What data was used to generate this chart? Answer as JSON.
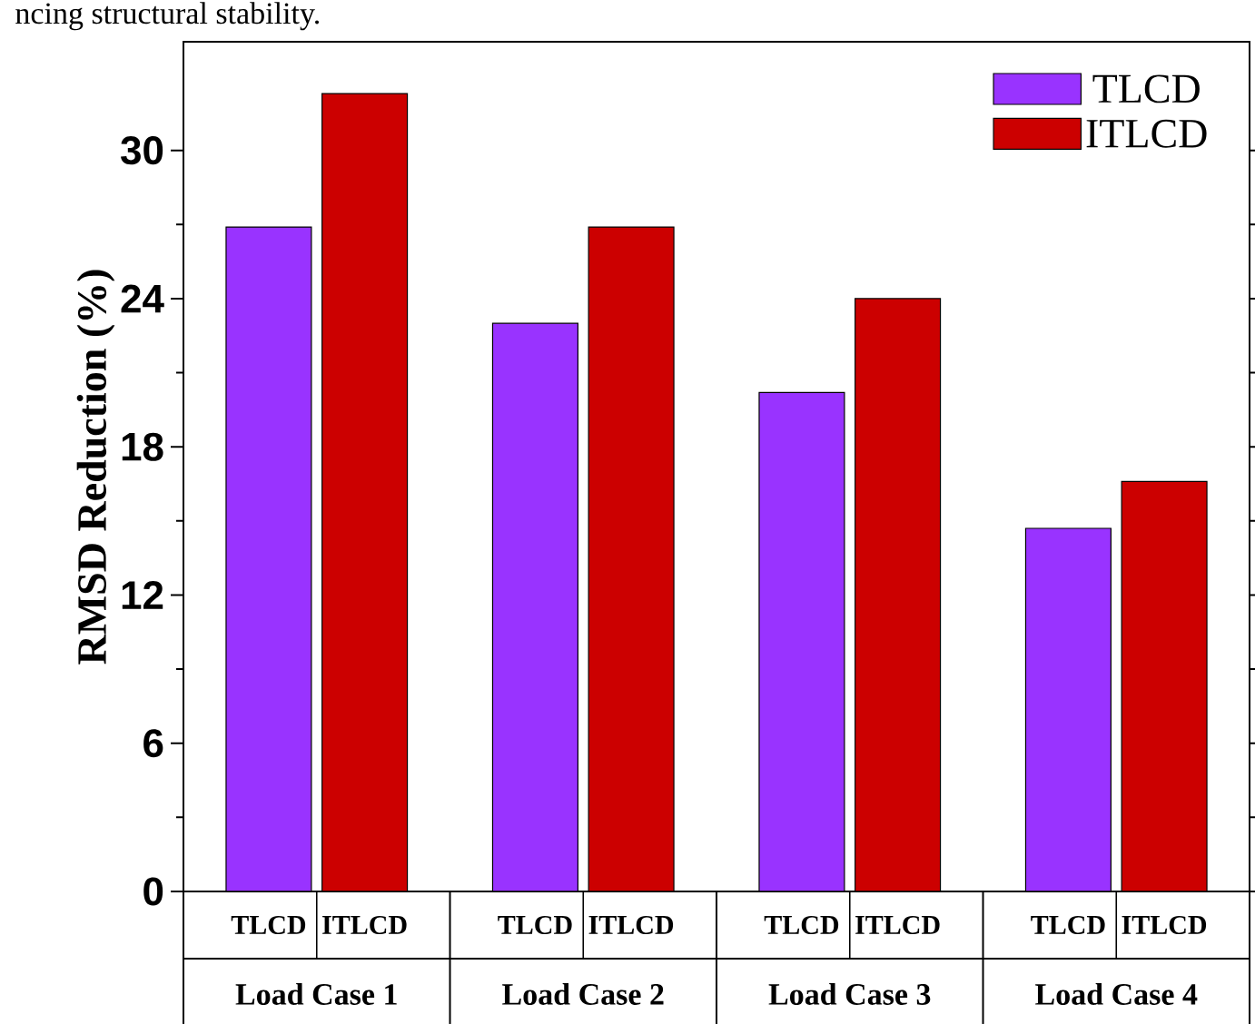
{
  "chart_data": {
    "type": "bar",
    "ylabel": "RMSD Reduction (%)",
    "categories": [
      "Load Case 1",
      "Load Case 2",
      "Load Case 3",
      "Load Case 4"
    ],
    "series": [
      {
        "name": "TLCD",
        "color": "#9933ff",
        "values": [
          26.9,
          23.0,
          20.2,
          14.7
        ]
      },
      {
        "name": "ITLCD",
        "color": "#cc0000",
        "values": [
          32.3,
          26.9,
          24.0,
          16.6
        ]
      }
    ],
    "ylim": [
      0,
      34.4
    ],
    "yticks": [
      0,
      6,
      12,
      18,
      24,
      30
    ],
    "legend": "top right",
    "grid": false,
    "annotations": [
      "ncing structural stability."
    ]
  }
}
